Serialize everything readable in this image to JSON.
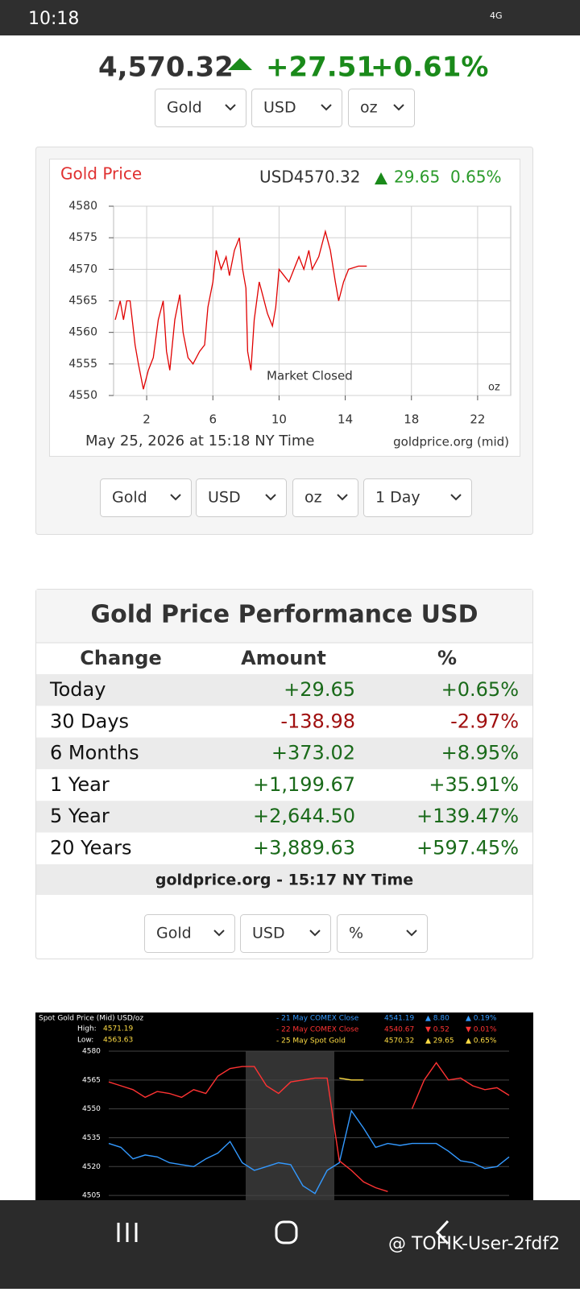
{
  "status_bar": {
    "time": "10:18",
    "network": "4G"
  },
  "ticker": {
    "price": "4,570.32",
    "change": "+27.51",
    "percent": "+0.61%"
  },
  "top_selectors": [
    "Gold",
    "USD",
    "oz"
  ],
  "gold_chart": {
    "type": "line",
    "title": "Gold Price",
    "header_price": "USD4570.32",
    "header_change": "29.65",
    "header_percent": "0.65%",
    "annotation": "Market Closed",
    "unit": "oz",
    "footer_left": "May 25, 2026 at 15:18 NY Time",
    "footer_right": "goldprice.org (mid)",
    "color": "#e00000",
    "xlim": [
      0,
      24
    ],
    "xticks": [
      2,
      6,
      10,
      14,
      18,
      22
    ],
    "ylim": [
      4550,
      4580
    ],
    "yticks": [
      4550,
      4555,
      4560,
      4565,
      4570,
      4575,
      4580
    ],
    "x": [
      0.1,
      0.4,
      0.6,
      0.8,
      1.0,
      1.3,
      1.5,
      1.8,
      2.1,
      2.4,
      2.7,
      3.0,
      3.2,
      3.4,
      3.7,
      4.0,
      4.2,
      4.5,
      4.8,
      5.2,
      5.5,
      5.7,
      6.0,
      6.2,
      6.5,
      6.8,
      7.0,
      7.3,
      7.6,
      7.8,
      8.0,
      8.1,
      8.3,
      8.5,
      8.8,
      9.0,
      9.3,
      9.6,
      9.8,
      10.0,
      10.3,
      10.6,
      10.9,
      11.2,
      11.5,
      11.8,
      12.0,
      12.4,
      12.8,
      13.1,
      13.4,
      13.6,
      13.9,
      14.2,
      14.8,
      15.3
    ],
    "values": [
      4562,
      4565,
      4562,
      4565,
      4565,
      4558,
      4555,
      4551,
      4554,
      4556,
      4562,
      4565,
      4557,
      4554,
      4562,
      4566,
      4560,
      4556,
      4555,
      4557,
      4558,
      4564,
      4568,
      4573,
      4570,
      4572,
      4569,
      4573,
      4575,
      4570,
      4567,
      4557,
      4554,
      4562,
      4568,
      4566,
      4563,
      4561,
      4564,
      4570,
      4569,
      4568,
      4570,
      4572,
      4570,
      4573,
      4570,
      4572,
      4576,
      4573,
      4568,
      4565,
      4568,
      4570,
      4570.5,
      4570.5
    ]
  },
  "chart_selectors": [
    "Gold",
    "USD",
    "oz",
    "1 Day"
  ],
  "performance": {
    "title": "Gold Price Performance USD",
    "columns": [
      "Change",
      "Amount",
      "%"
    ],
    "rows": [
      [
        "Today",
        "+29.65",
        "+0.65%"
      ],
      [
        "30 Days",
        "-138.98",
        "-2.97%"
      ],
      [
        "6 Months",
        "+373.02",
        "+8.95%"
      ],
      [
        "1 Year",
        "+1,199.67",
        "+35.91%"
      ],
      [
        "5 Year",
        "+2,644.50",
        "+139.47%"
      ],
      [
        "20 Years",
        "+3,889.63",
        "+597.45%"
      ]
    ],
    "footer": "goldprice.org - 15:17 NY Time"
  },
  "performance_selectors": [
    "Gold",
    "USD",
    "%"
  ],
  "spot_chart": {
    "type": "line",
    "title": "Spot Gold Price (Mid) USD/oz",
    "high_label": "High:",
    "high": "4571.19",
    "low_label": "Low:",
    "low": "4563.63",
    "ylim": [
      4500,
      4580
    ],
    "yticks": [
      4580,
      4565,
      4550,
      4535,
      4520,
      4505
    ],
    "series": [
      {
        "name": "- 21 May COMEX Close",
        "color": "#3399ff",
        "price": "4541.19",
        "change": "▲ 8.80",
        "percent": "▲ 0.19%",
        "values": [
          4532,
          4530,
          4524,
          4526,
          4525,
          4522,
          4521,
          4520,
          4524,
          4527,
          4533,
          4522,
          4518,
          4520,
          4522,
          4521,
          4510,
          4506,
          4518,
          4522,
          4549,
          4540,
          4530,
          4532,
          4531,
          4532,
          4532,
          4532,
          4528,
          4523,
          4522,
          4519,
          4520,
          4525
        ]
      },
      {
        "name": "- 22 May COMEX Close",
        "color": "#ff3333",
        "price": "4540.67",
        "change": "▼ 0.52",
        "percent": "▼ 0.01%",
        "values": [
          4564,
          4562,
          4560,
          4556,
          4559,
          4558,
          4556,
          4560,
          4558,
          4567,
          4571,
          4572,
          4572,
          4562,
          4558,
          4564,
          4565,
          4566,
          4566,
          4523,
          4518,
          4512,
          4509,
          4507,
          null,
          4550,
          4565,
          4574,
          4565,
          4566,
          4562,
          4560,
          4561,
          4557
        ]
      },
      {
        "name": "- 25 May Spot Gold",
        "color": "#ffdd44",
        "price": "4570.32",
        "change": "▲ 29.65",
        "percent": "▲ 0.65%",
        "values": [
          null,
          null,
          null,
          null,
          null,
          null,
          null,
          null,
          null,
          null,
          null,
          null,
          null,
          null,
          null,
          null,
          null,
          null,
          null,
          4566,
          4565,
          4565,
          null,
          null,
          null,
          null,
          null,
          null,
          null,
          null,
          null,
          null,
          null,
          null
        ]
      }
    ]
  },
  "watermark": "@ TOFIK-User-2fdf2"
}
